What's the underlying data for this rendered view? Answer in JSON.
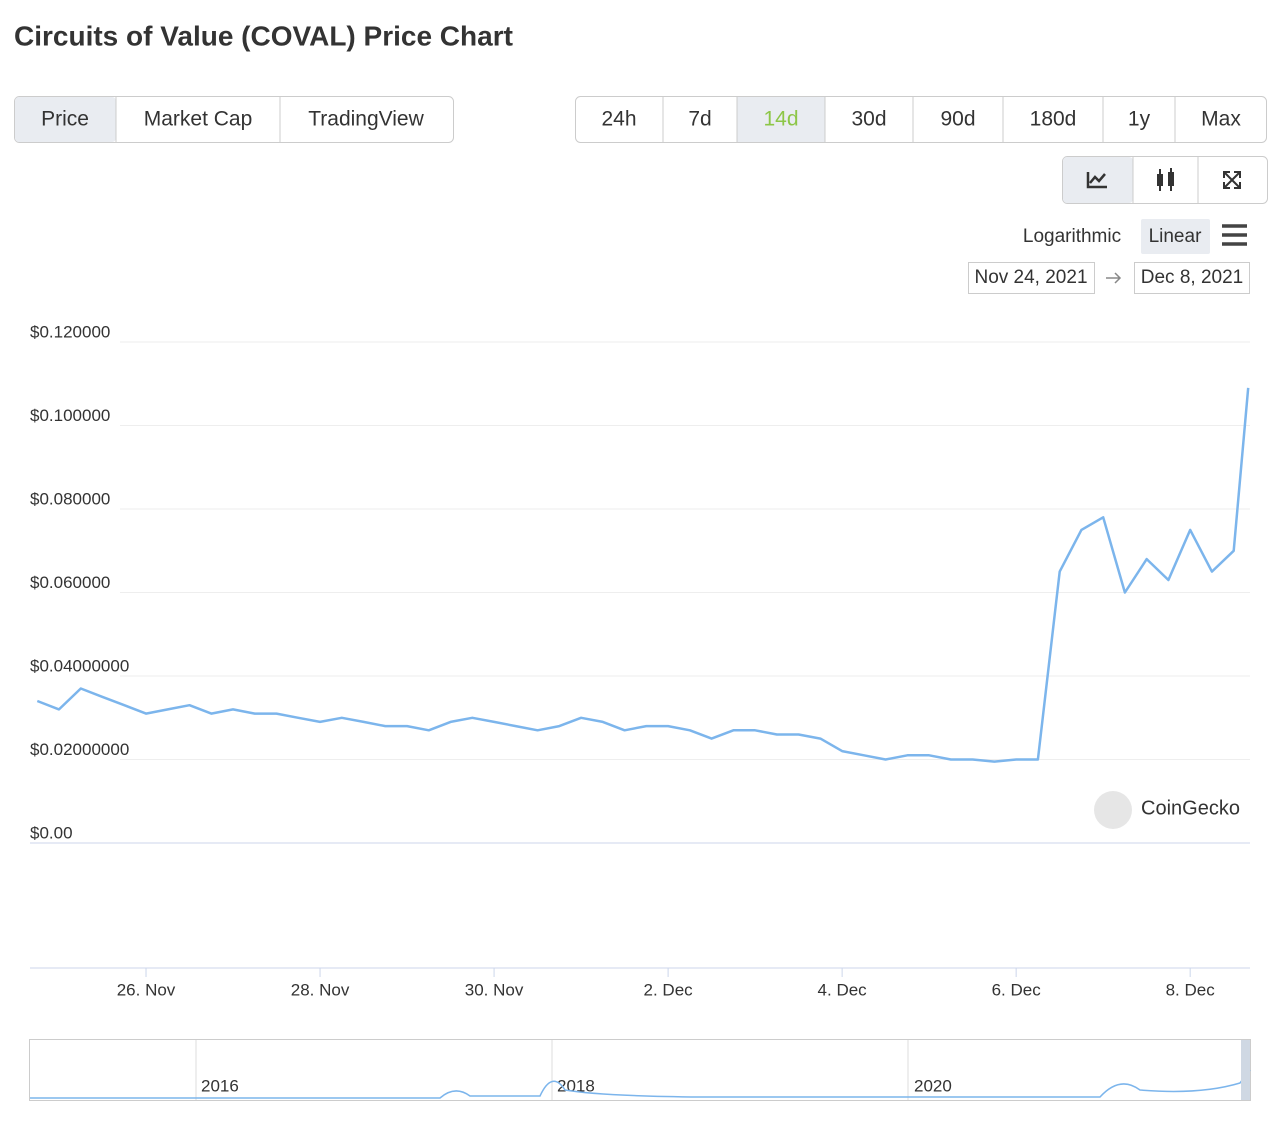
{
  "page": {
    "title": "Circuits of Value (COVAL) Price Chart",
    "tabs": [
      "Price",
      "Market Cap",
      "TradingView"
    ],
    "ranges": [
      "24h",
      "7d",
      "14d",
      "30d",
      "90d",
      "180d",
      "1y",
      "Max"
    ],
    "scales": [
      "Logarithmic",
      "Linear"
    ],
    "date_from": "Nov 24, 2021",
    "date_to": "Dec 8, 2021",
    "watermark": "CoinGecko",
    "navigator_labels": [
      "2016",
      "2018",
      "2020"
    ]
  },
  "chart_data": {
    "type": "line",
    "x": [
      "2021-11-24T18:00",
      "2021-11-25T00:00",
      "2021-11-25T06:00",
      "2021-11-25T12:00",
      "2021-11-25T18:00",
      "2021-11-26T00:00",
      "2021-11-26T06:00",
      "2021-11-26T12:00",
      "2021-11-26T18:00",
      "2021-11-27T00:00",
      "2021-11-27T06:00",
      "2021-11-27T12:00",
      "2021-11-27T18:00",
      "2021-11-28T00:00",
      "2021-11-28T06:00",
      "2021-11-28T12:00",
      "2021-11-28T18:00",
      "2021-11-29T00:00",
      "2021-11-29T06:00",
      "2021-11-29T12:00",
      "2021-11-29T18:00",
      "2021-11-30T00:00",
      "2021-11-30T06:00",
      "2021-11-30T12:00",
      "2021-11-30T18:00",
      "2021-12-01T00:00",
      "2021-12-01T06:00",
      "2021-12-01T12:00",
      "2021-12-01T18:00",
      "2021-12-02T00:00",
      "2021-12-02T06:00",
      "2021-12-02T12:00",
      "2021-12-02T18:00",
      "2021-12-03T00:00",
      "2021-12-03T06:00",
      "2021-12-03T12:00",
      "2021-12-03T18:00",
      "2021-12-04T00:00",
      "2021-12-04T06:00",
      "2021-12-04T12:00",
      "2021-12-04T18:00",
      "2021-12-05T00:00",
      "2021-12-05T06:00",
      "2021-12-05T12:00",
      "2021-12-05T18:00",
      "2021-12-06T00:00",
      "2021-12-06T06:00",
      "2021-12-06T12:00",
      "2021-12-06T18:00",
      "2021-12-07T00:00",
      "2021-12-07T06:00",
      "2021-12-07T12:00",
      "2021-12-07T18:00",
      "2021-12-08T00:00",
      "2021-12-08T06:00",
      "2021-12-08T12:00",
      "2021-12-08T16:00"
    ],
    "series": [
      {
        "name": "Price",
        "color": "#7cb5ec",
        "values": [
          0.034,
          0.032,
          0.037,
          0.035,
          0.033,
          0.031,
          0.032,
          0.033,
          0.031,
          0.032,
          0.031,
          0.031,
          0.03,
          0.029,
          0.03,
          0.029,
          0.028,
          0.028,
          0.027,
          0.029,
          0.03,
          0.029,
          0.028,
          0.027,
          0.028,
          0.03,
          0.029,
          0.027,
          0.028,
          0.028,
          0.027,
          0.025,
          0.027,
          0.027,
          0.026,
          0.026,
          0.025,
          0.022,
          0.021,
          0.02,
          0.021,
          0.021,
          0.02,
          0.02,
          0.0195,
          0.02,
          0.02,
          0.065,
          0.075,
          0.078,
          0.06,
          0.068,
          0.063,
          0.075,
          0.065,
          0.07,
          0.109
        ]
      }
    ],
    "xlim": [
      "2021-11-24T16:00",
      "2021-12-08T16:30"
    ],
    "xticks": [
      {
        "value": "2021-11-26T00:00",
        "label": "26. Nov"
      },
      {
        "value": "2021-11-28T00:00",
        "label": "28. Nov"
      },
      {
        "value": "2021-11-30T00:00",
        "label": "30. Nov"
      },
      {
        "value": "2021-12-02T00:00",
        "label": "2. Dec"
      },
      {
        "value": "2021-12-04T00:00",
        "label": "4. Dec"
      },
      {
        "value": "2021-12-06T00:00",
        "label": "6. Dec"
      },
      {
        "value": "2021-12-08T00:00",
        "label": "8. Dec"
      }
    ],
    "ylim": [
      0,
      0.12
    ],
    "yticks": [
      {
        "value": 0,
        "label": "$0.00"
      },
      {
        "value": 0.02,
        "label": "$0.02000000"
      },
      {
        "value": 0.04,
        "label": "$0.04000000"
      },
      {
        "value": 0.06,
        "label": "$0.060000"
      },
      {
        "value": 0.08,
        "label": "$0.080000"
      },
      {
        "value": 0.1,
        "label": "$0.100000"
      },
      {
        "value": 0.12,
        "label": "$0.120000"
      }
    ],
    "grid": true
  }
}
